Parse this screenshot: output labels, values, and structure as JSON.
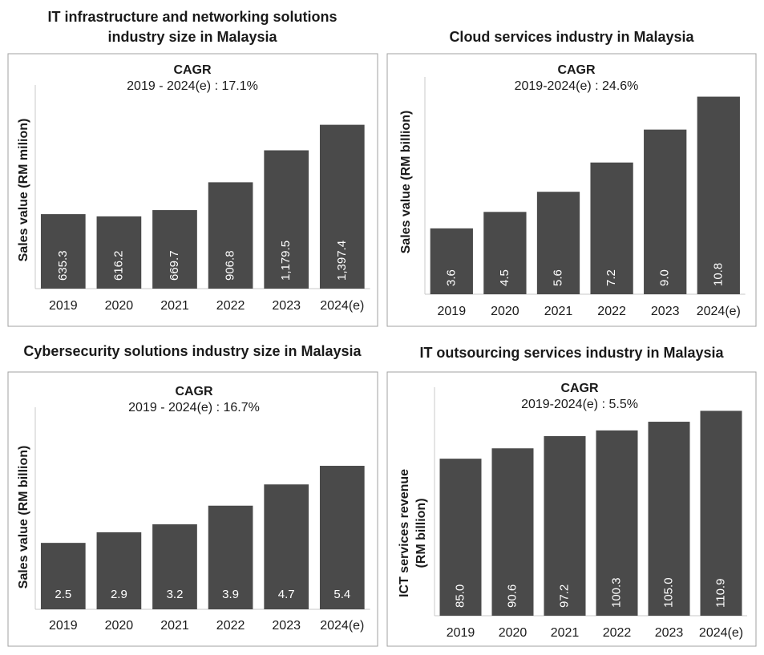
{
  "chart_data": [
    {
      "type": "bar",
      "title": "IT infrastructure and networking solutions industry size in Malaysia",
      "annotations": [
        "CAGR",
        "2019 - 2024(e) : 17.1%"
      ],
      "ylabel": "Sales value (RM milion)",
      "categories": [
        "2019",
        "2020",
        "2021",
        "2022",
        "2023",
        "2024(e)"
      ],
      "values": [
        635.3,
        616.2,
        669.7,
        906.8,
        1179.5,
        1397.4
      ],
      "value_labels": [
        "635.3",
        "616.2",
        "669.7",
        "906.8",
        "1,179.5",
        "1,397.4"
      ],
      "color": "#4a4a4a",
      "ylim": [
        0,
        1600
      ]
    },
    {
      "type": "bar",
      "title": "Cloud services industry in Malaysia",
      "annotations": [
        "CAGR",
        "2019-2024(e) : 24.6%"
      ],
      "ylabel": "Sales value (RM billion)",
      "categories": [
        "2019",
        "2020",
        "2021",
        "2022",
        "2023",
        "2024(e)"
      ],
      "values": [
        3.6,
        4.5,
        5.6,
        7.2,
        9.0,
        10.8
      ],
      "value_labels": [
        "3.6",
        "4.5",
        "5.6",
        "7.2",
        "9.0",
        "10.8"
      ],
      "color": "#4a4a4a",
      "ylim": [
        0,
        11
      ]
    },
    {
      "type": "bar",
      "title": "Cybersecurity solutions industry size in Malaysia",
      "annotations": [
        "CAGR",
        "2019 - 2024(e) : 16.7%"
      ],
      "ylabel": "Sales value (RM billion)",
      "categories": [
        "2019",
        "2020",
        "2021",
        "2022",
        "2023",
        "2024(e)"
      ],
      "values": [
        2.5,
        2.9,
        3.2,
        3.9,
        4.7,
        5.4
      ],
      "color": "#4a4a4a",
      "ylim": [
        0,
        7
      ]
    },
    {
      "type": "bar",
      "title": "IT outsourcing services industry in Malaysia",
      "annotations": [
        "CAGR",
        "2019-2024(e) : 5.5%"
      ],
      "ylabel": [
        "ICT services revenue",
        "(RM billion)"
      ],
      "categories": [
        "2019",
        "2020",
        "2021",
        "2022",
        "2023",
        "2024(e)"
      ],
      "values": [
        85.0,
        90.6,
        97.2,
        100.3,
        105.0,
        110.9
      ],
      "value_labels": [
        "85.0",
        "90.6",
        "97.2",
        "100.3",
        "105.0",
        "110.9"
      ],
      "color": "#4a4a4a",
      "ylim": [
        0,
        115
      ]
    }
  ]
}
